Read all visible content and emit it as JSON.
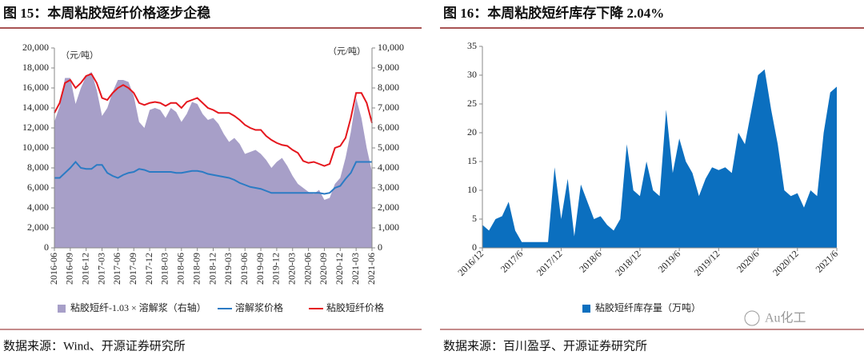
{
  "chart_data": [
    {
      "type": "line",
      "title": "图 15：本周粘胶短纤价格逐步企稳",
      "source": "数据来源：Wind、开源证券研究所",
      "annotations": [
        "（元/吨）",
        "（元/吨）"
      ],
      "categories": [
        "2016-06",
        null,
        null,
        "2016-09",
        null,
        null,
        "2016-12",
        null,
        null,
        "2017-03",
        null,
        null,
        "2017-06",
        null,
        null,
        "2017-09",
        null,
        null,
        "2017-12",
        null,
        null,
        "2018-03",
        null,
        null,
        "2018-06",
        null,
        null,
        "2018-09",
        null,
        null,
        "2018-12",
        null,
        null,
        "2019-03",
        null,
        null,
        "2019-06",
        null,
        null,
        "2019-09",
        null,
        null,
        "2019-12",
        null,
        null,
        "2020-03",
        null,
        null,
        "2020-06",
        null,
        null,
        "2020-09",
        null,
        null,
        "2020-12",
        null,
        null,
        "2021-03",
        null,
        null,
        "2021-06"
      ],
      "series": [
        {
          "name": "粘胶短纤-1.03 × 溶解浆（右轴）",
          "type": "area",
          "axis": "y2",
          "color": "#a79fc8",
          "values": [
            6300,
            7100,
            8500,
            8500,
            7200,
            8000,
            8600,
            8800,
            7900,
            6600,
            7000,
            7800,
            8400,
            8400,
            8300,
            7600,
            6300,
            6000,
            6900,
            7000,
            6900,
            6500,
            7000,
            6800,
            6300,
            6700,
            7300,
            7200,
            6700,
            6400,
            6500,
            6200,
            5700,
            5300,
            5500,
            5200,
            4700,
            4800,
            4900,
            4700,
            4400,
            4000,
            4300,
            4500,
            4100,
            3600,
            3200,
            3000,
            2800,
            2700,
            2900,
            2400,
            2500,
            3200,
            3500,
            4500,
            5800,
            7500,
            6500,
            5000,
            3800
          ]
        },
        {
          "name": "溶解浆价格",
          "type": "line",
          "color": "#2b7bc4",
          "values": [
            7000,
            7000,
            7500,
            8000,
            8600,
            8000,
            7900,
            7900,
            8300,
            8300,
            7500,
            7200,
            7000,
            7300,
            7500,
            7600,
            7900,
            7800,
            7600,
            7600,
            7600,
            7600,
            7600,
            7500,
            7500,
            7600,
            7700,
            7700,
            7600,
            7400,
            7300,
            7200,
            7100,
            7000,
            6800,
            6500,
            6300,
            6100,
            6000,
            5900,
            5700,
            5500,
            5500,
            5500,
            5500,
            5500,
            5500,
            5500,
            5500,
            5500,
            5500,
            5400,
            5500,
            6000,
            6200,
            6900,
            7500,
            8600,
            8600,
            8600,
            8600
          ]
        },
        {
          "name": "粘胶短纤价格",
          "type": "line",
          "color": "#e5161d",
          "values": [
            13500,
            14500,
            16500,
            16800,
            16000,
            16500,
            17200,
            17400,
            16500,
            15000,
            14800,
            15500,
            16000,
            16300,
            16000,
            15500,
            14500,
            14300,
            14500,
            14600,
            14500,
            14200,
            14500,
            14500,
            14000,
            14600,
            14800,
            15000,
            14500,
            14000,
            13800,
            13500,
            13500,
            13500,
            13200,
            12800,
            12300,
            12000,
            11800,
            11800,
            11200,
            10800,
            10500,
            10300,
            10200,
            9800,
            9500,
            8700,
            8500,
            8600,
            8400,
            8200,
            8400,
            10000,
            10200,
            11000,
            13000,
            15500,
            15500,
            14500,
            12500
          ]
        }
      ],
      "ylim": [
        0,
        20000
      ],
      "yticks": [
        0,
        {
          "value": 2000,
          "label": "2,000"
        },
        {
          "value": 4000,
          "label": "4,000"
        },
        {
          "value": 6000,
          "label": "6,000"
        },
        {
          "value": 8000,
          "label": "8,000"
        },
        {
          "value": 10000,
          "label": "10,000"
        },
        {
          "value": 12000,
          "label": "12,000"
        },
        {
          "value": 14000,
          "label": "14,000"
        },
        {
          "value": 16000,
          "label": "16,000"
        },
        {
          "value": 18000,
          "label": "18,000"
        },
        {
          "value": 20000,
          "label": "20,000"
        }
      ],
      "y2lim": [
        0,
        10000
      ],
      "y2ticks": [
        0,
        {
          "value": 1000,
          "label": "1,000"
        },
        {
          "value": 2000,
          "label": "2,000"
        },
        {
          "value": 3000,
          "label": "3,000"
        },
        {
          "value": 4000,
          "label": "4,000"
        },
        {
          "value": 5000,
          "label": "5,000"
        },
        {
          "value": 6000,
          "label": "6,000"
        },
        {
          "value": 7000,
          "label": "7,000"
        },
        {
          "value": 8000,
          "label": "8,000"
        },
        {
          "value": 9000,
          "label": "9,000"
        },
        {
          "value": 10000,
          "label": "10,000"
        }
      ],
      "x_label_rotation": -90,
      "legend": "bottom"
    },
    {
      "type": "area",
      "title": "图 16：本周粘胶短纤库存下降 2.04%",
      "source": "数据来源：百川盈孚、开源证券研究所",
      "watermark": "Au化工",
      "categories": [
        "2016/12",
        null,
        null,
        null,
        null,
        null,
        "2017/6",
        null,
        null,
        null,
        null,
        null,
        "2017/12",
        null,
        null,
        null,
        null,
        null,
        "2018/6",
        null,
        null,
        null,
        null,
        null,
        "2018/12",
        null,
        null,
        null,
        null,
        null,
        "2019/6",
        null,
        null,
        null,
        null,
        null,
        "2019/12",
        null,
        null,
        null,
        null,
        null,
        "2020/6",
        null,
        null,
        null,
        null,
        null,
        "2020/12",
        null,
        null,
        null,
        null,
        null,
        "2021/6"
      ],
      "series": [
        {
          "name": "粘胶短纤库存量（万吨）",
          "type": "area",
          "color": "#0b6fbf",
          "values": [
            4,
            3,
            5,
            5.5,
            8,
            3,
            1,
            1,
            1,
            1,
            1,
            14,
            5,
            12,
            2,
            11,
            8,
            5,
            5.5,
            4,
            3,
            5,
            18,
            10,
            9,
            15,
            10,
            9,
            24,
            13,
            19,
            15,
            13,
            9,
            12,
            14,
            13.5,
            14,
            13,
            20,
            18,
            24,
            30,
            31,
            24,
            18,
            10,
            9,
            9.5,
            7,
            10,
            9,
            20,
            27,
            28
          ]
        }
      ],
      "ylim": [
        0,
        35
      ],
      "yticks": [
        0,
        5,
        10,
        15,
        20,
        25,
        30,
        35
      ],
      "x_label_rotation": -45,
      "legend": "bottom"
    }
  ]
}
